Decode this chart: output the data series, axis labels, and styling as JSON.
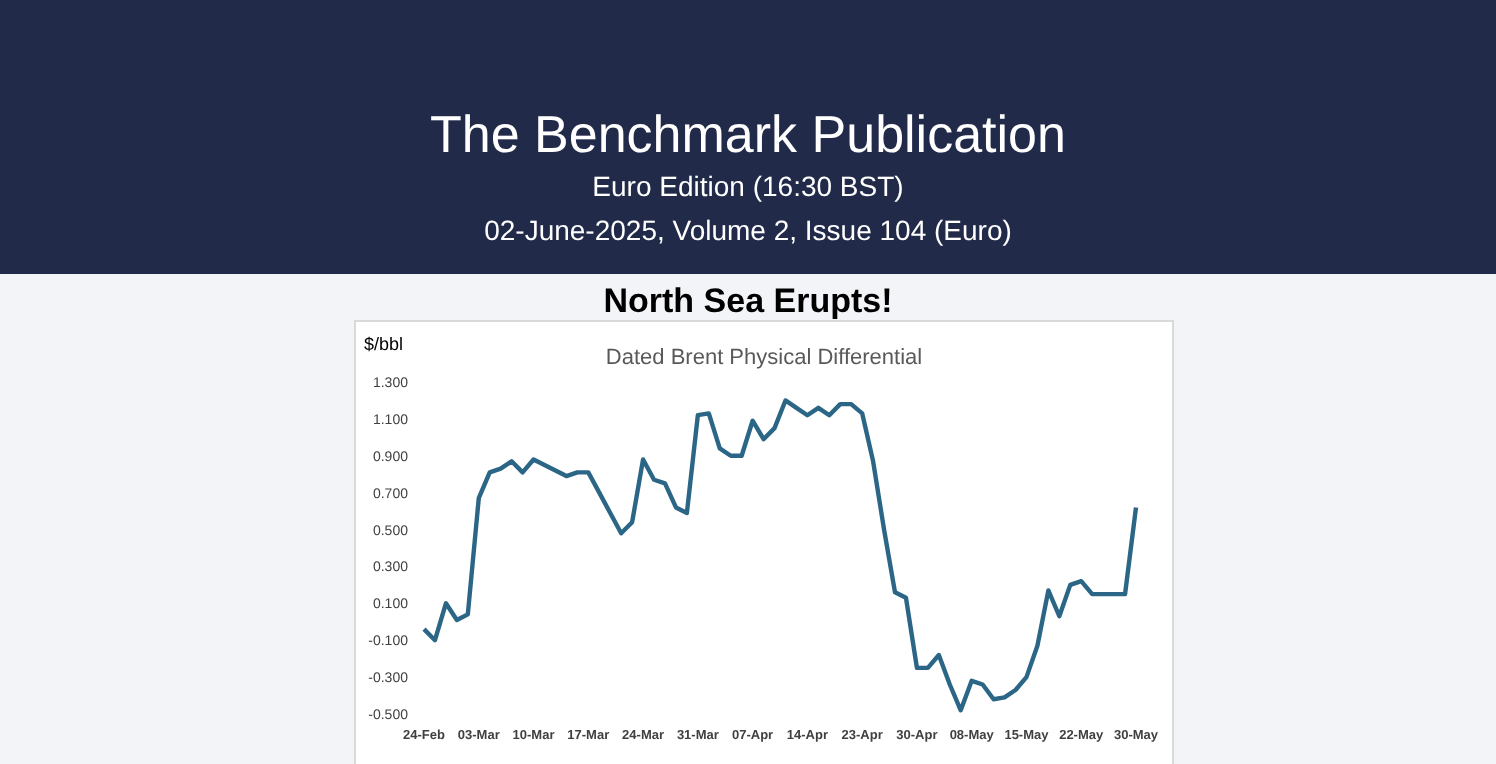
{
  "chart_data": {
    "type": "line",
    "title": "North Sea Erupts!",
    "subtitle": "Dated Brent Physical Differential",
    "ylabel": "$/bbl",
    "annotations": [
      "The Benchmark Publication",
      "Euro Edition (16:30 BST)",
      "02-June-2025, Volume 2, Issue 104 (Euro)"
    ],
    "categories": [
      "24-Feb",
      null,
      null,
      null,
      null,
      "03-Mar",
      null,
      null,
      null,
      null,
      "10-Mar",
      null,
      null,
      null,
      null,
      "17-Mar",
      null,
      null,
      null,
      null,
      "24-Mar",
      null,
      null,
      null,
      null,
      "31-Mar",
      null,
      null,
      null,
      null,
      "07-Apr",
      null,
      null,
      null,
      null,
      "14-Apr",
      null,
      null,
      null,
      null,
      "23-Apr",
      null,
      null,
      null,
      null,
      "30-Apr",
      null,
      null,
      null,
      null,
      "08-May",
      null,
      null,
      null,
      null,
      "15-May",
      null,
      null,
      null,
      null,
      "22-May",
      null,
      null,
      null,
      null,
      "30-May"
    ],
    "series": [
      {
        "color": "#2b6686",
        "values": [
          -0.04,
          -0.1,
          0.1,
          0.01,
          0.04,
          0.67,
          0.81,
          0.83,
          0.87,
          0.81,
          0.88,
          0.85,
          0.82,
          0.79,
          0.81,
          0.81,
          0.7,
          0.59,
          0.48,
          0.54,
          0.88,
          0.77,
          0.75,
          0.62,
          0.59,
          1.12,
          1.13,
          0.94,
          0.9,
          0.9,
          1.09,
          0.99,
          1.05,
          1.2,
          1.16,
          1.12,
          1.16,
          1.12,
          1.18,
          1.18,
          1.13,
          0.87,
          0.5,
          0.16,
          0.13,
          -0.25,
          -0.25,
          -0.18,
          -0.34,
          -0.48,
          -0.32,
          -0.34,
          -0.42,
          -0.41,
          -0.37,
          -0.3,
          -0.13,
          0.17,
          0.03,
          0.2,
          0.22,
          0.15,
          0.15,
          0.15,
          0.15,
          0.62
        ]
      }
    ],
    "ylim": [
      -0.5,
      1.3
    ],
    "yticks": [
      {
        "value": 1.3,
        "label": "1.300"
      },
      {
        "value": 1.1,
        "label": "1.100"
      },
      {
        "value": 0.9,
        "label": "0.900"
      },
      {
        "value": 0.7,
        "label": "0.700"
      },
      {
        "value": 0.5,
        "label": "0.500"
      },
      {
        "value": 0.3,
        "label": "0.300"
      },
      {
        "value": 0.1,
        "label": "0.100"
      },
      {
        "value": -0.1,
        "label": "-0.100"
      },
      {
        "value": -0.3,
        "label": "-0.300"
      },
      {
        "value": -0.5,
        "label": "-0.500"
      }
    ],
    "grid": false,
    "legend": false,
    "marker": "none",
    "line_style": "solid"
  }
}
